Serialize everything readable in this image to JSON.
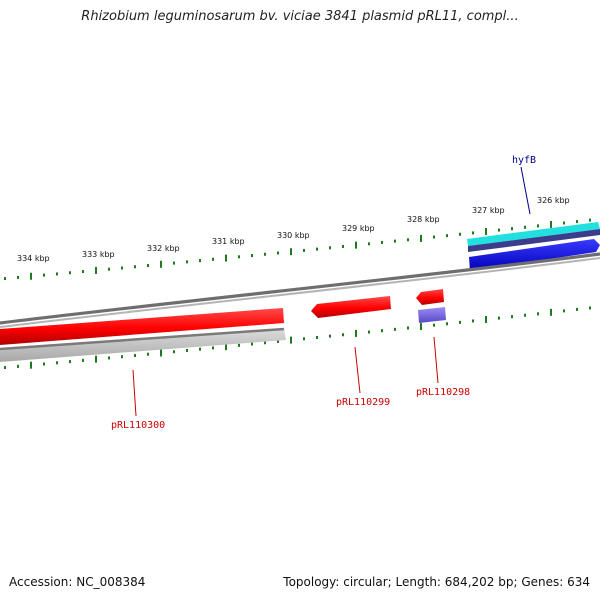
{
  "title": "Rhizobium leguminosarum bv. viciae 3841 plasmid pRL11, compl...",
  "footer": {
    "accession": "Accession: NC_008384",
    "summary": "Topology: circular; Length: 684,202 bp; Genes: 634"
  },
  "scale_labels": [
    "334 kbp",
    "333 kbp",
    "332 kbp",
    "331 kbp",
    "330 kbp",
    "329 kbp",
    "328 kbp",
    "327 kbp",
    "326 kbp"
  ],
  "genes": [
    {
      "name": "hyfB",
      "strand": "forward",
      "color": "#00008b"
    },
    {
      "name": "pRL110298",
      "strand": "reverse",
      "color": "#cc0000"
    },
    {
      "name": "pRL110299",
      "strand": "reverse",
      "color": "#cc0000"
    },
    {
      "name": "pRL110300",
      "strand": "reverse",
      "color": "#cc0000"
    }
  ],
  "colors": {
    "cds": "#ff0000",
    "forward_feature": "#0000ee",
    "forward_feature_dark": "#3c3c8c",
    "cyan_feature": "#22e0e0",
    "purple_feature": "#7b68ee",
    "backbone": "#808080",
    "ticks": "#1e7a1e",
    "red_label": "#cc0000",
    "blue_label": "#00008b"
  }
}
